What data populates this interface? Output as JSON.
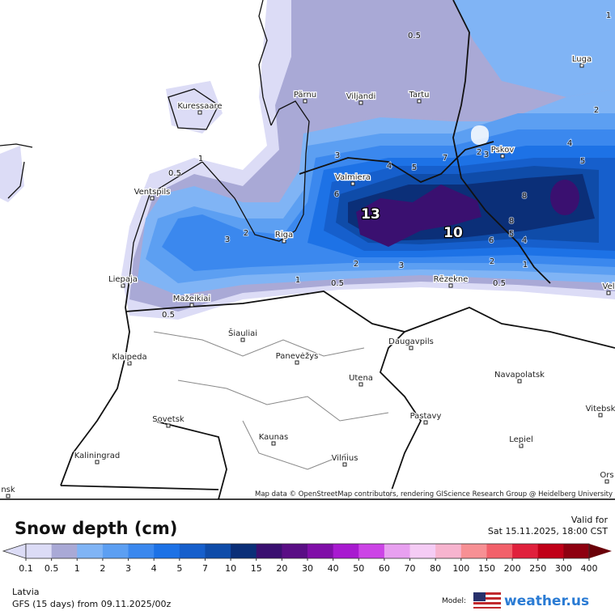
{
  "map": {
    "cities": [
      "Luga",
      "Kuressaare",
      "Pärnu",
      "Viljandi",
      "Tartu",
      "Pskov",
      "Valmiera",
      "Ventspils",
      "Riga",
      "Liepaja",
      "Mažeikiai",
      "Rēzekne",
      "Šiauliai",
      "Klaipeda",
      "Panevėžys",
      "Daugavpils",
      "Utena",
      "Navapolatsk",
      "Vitebsk",
      "Sovetsk",
      "Kaunas",
      "Pastavy",
      "Lepiel",
      "Kaliningrad",
      "Vilnius",
      "Ors",
      "Vel",
      "nsk"
    ],
    "contour_labels": [
      "0.5",
      "1",
      "0.5",
      "1",
      "2",
      "3",
      "1",
      "0.5",
      "0.5",
      "2",
      "3",
      "3",
      "4",
      "5",
      "6",
      "7",
      "2",
      "3",
      "13",
      "8",
      "5",
      "4",
      "2",
      "2",
      "1",
      "0.5",
      "6",
      "5",
      "4",
      "8",
      "10"
    ],
    "attribution": "Map data © OpenStreetMap contributors, rendering GIScience Research Group @ Heidelberg University"
  },
  "footer": {
    "title": "Snow depth (cm)",
    "valid_label": "Valid for",
    "valid_time": "Sat 15.11.2025, 18:00 CST",
    "legend_values": [
      0.1,
      0.5,
      1,
      2,
      3,
      4,
      5,
      7,
      10,
      15,
      20,
      30,
      40,
      50,
      60,
      70,
      80,
      100,
      150,
      200,
      250,
      300,
      400
    ],
    "legend_colors": [
      "#dcdcf6",
      "#a9a9d6",
      "#80b4f5",
      "#5c9ff2",
      "#3b88ee",
      "#1d72e6",
      "#165fcc",
      "#0f4ca9",
      "#0b2f78",
      "#3a1070",
      "#5a0e85",
      "#800fa8",
      "#a81ad0",
      "#cc44e6",
      "#e8a0f0",
      "#f5ccf5",
      "#f7b4cf",
      "#f79094",
      "#f2606a",
      "#e0203c",
      "#c00018",
      "#8e0010",
      "#6a0008"
    ],
    "region": "Latvia",
    "model_run": "GFS (15 days) from 09.11.2025/00z",
    "model_label": "Model:",
    "brand": "weather.us"
  }
}
